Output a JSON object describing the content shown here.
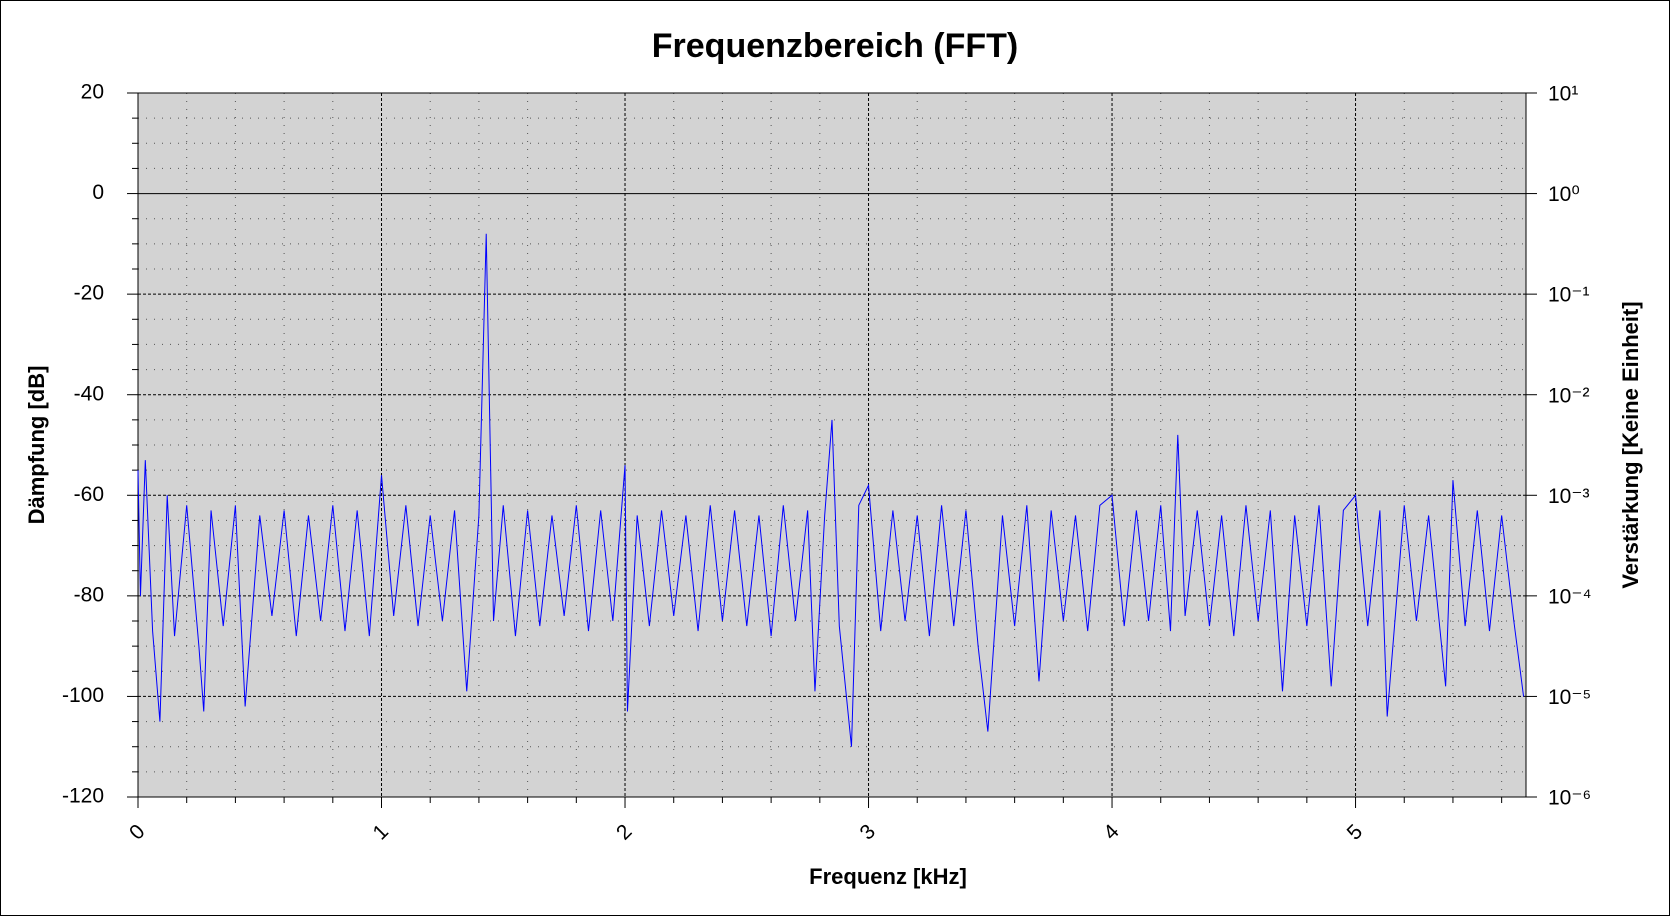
{
  "chart_data": {
    "type": "line",
    "title": "Frequenzbereich (FFT)",
    "x_label": "Frequenz [kHz]",
    "y_label": "Dämpfung [dB]",
    "y2_label": "Verstärkung [Keine Einheit]",
    "color": "#0000ff",
    "grid": true,
    "zero_line": true,
    "y2_log": true,
    "xlim": [
      0,
      5.7
    ],
    "ylim": [
      -120,
      20
    ],
    "y2lim": [
      1e-06,
      10
    ],
    "xticks": [
      0,
      1,
      2,
      3,
      4,
      5
    ],
    "yticks": [
      -120,
      -100,
      -80,
      -60,
      -40,
      -20,
      0,
      20
    ],
    "xminorticks": [
      0.2,
      0.4,
      0.6,
      0.8,
      1.2,
      1.4,
      1.6,
      1.8,
      2.2,
      2.4,
      2.6,
      2.8,
      3.2,
      3.4,
      3.6,
      3.8,
      4.2,
      4.4,
      4.6,
      4.8,
      5.2,
      5.4,
      5.6
    ],
    "yminorticks": [
      -115,
      -110,
      -105,
      -95,
      -90,
      -85,
      -75,
      -70,
      -65,
      -55,
      -50,
      -45,
      -35,
      -30,
      -25,
      -15,
      -10,
      -5,
      5,
      10,
      15
    ],
    "y2ticks": [
      {
        "value": 1e-06,
        "label": "10⁻⁶"
      },
      {
        "value": 1e-05,
        "label": "10⁻⁵"
      },
      {
        "value": 0.0001,
        "label": "10⁻⁴"
      },
      {
        "value": 0.001,
        "label": "10⁻³"
      },
      {
        "value": 0.01,
        "label": "10⁻²"
      },
      {
        "value": 0.1,
        "label": "10⁻¹"
      },
      {
        "value": 1,
        "label": "10⁰"
      },
      {
        "value": 10,
        "label": "10¹"
      }
    ],
    "x": [
      0,
      0.01,
      0.03,
      0.06,
      0.09,
      0.12,
      0.15,
      0.2,
      0.25,
      0.27,
      0.3,
      0.35,
      0.4,
      0.44,
      0.5,
      0.55,
      0.6,
      0.65,
      0.7,
      0.75,
      0.8,
      0.85,
      0.9,
      0.95,
      1.0,
      1.05,
      1.1,
      1.15,
      1.2,
      1.25,
      1.3,
      1.35,
      1.4,
      1.43,
      1.46,
      1.5,
      1.55,
      1.6,
      1.65,
      1.7,
      1.75,
      1.8,
      1.85,
      1.9,
      1.95,
      2.0,
      2.01,
      2.05,
      2.1,
      2.15,
      2.2,
      2.25,
      2.3,
      2.35,
      2.4,
      2.45,
      2.5,
      2.55,
      2.6,
      2.65,
      2.7,
      2.75,
      2.78,
      2.82,
      2.85,
      2.88,
      2.93,
      2.96,
      3.0,
      3.05,
      3.1,
      3.15,
      3.2,
      3.25,
      3.3,
      3.35,
      3.4,
      3.45,
      3.49,
      3.55,
      3.6,
      3.65,
      3.7,
      3.75,
      3.8,
      3.85,
      3.9,
      3.95,
      4.0,
      4.05,
      4.1,
      4.15,
      4.2,
      4.24,
      4.27,
      4.3,
      4.35,
      4.4,
      4.45,
      4.5,
      4.55,
      4.6,
      4.65,
      4.7,
      4.75,
      4.8,
      4.85,
      4.9,
      4.95,
      5.0,
      5.05,
      5.1,
      5.13,
      5.2,
      5.25,
      5.3,
      5.37,
      5.4,
      5.45,
      5.5,
      5.55,
      5.6,
      5.65,
      5.69
    ],
    "values": [
      -55,
      -80,
      -53,
      -87,
      -105,
      -60,
      -88,
      -62,
      -90,
      -103,
      -63,
      -86,
      -62,
      -102,
      -64,
      -84,
      -63,
      -88,
      -64,
      -85,
      -62,
      -87,
      -63,
      -88,
      -56,
      -84,
      -62,
      -86,
      -64,
      -85,
      -63,
      -99,
      -64,
      -8,
      -85,
      -62,
      -88,
      -63,
      -86,
      -64,
      -84,
      -62,
      -87,
      -63,
      -85,
      -54,
      -103,
      -64,
      -86,
      -63,
      -84,
      -64,
      -87,
      -62,
      -85,
      -63,
      -86,
      -64,
      -88,
      -62,
      -85,
      -63,
      -99,
      -64,
      -45,
      -86,
      -110,
      -62,
      -58,
      -87,
      -63,
      -85,
      -64,
      -88,
      -62,
      -86,
      -63,
      -90,
      -107,
      -64,
      -86,
      -62,
      -97,
      -63,
      -85,
      -64,
      -87,
      -62,
      -60,
      -86,
      -63,
      -85,
      -62,
      -87,
      -48,
      -84,
      -63,
      -86,
      -64,
      -88,
      -62,
      -85,
      -63,
      -99,
      -64,
      -86,
      -62,
      -98,
      -63,
      -60,
      -86,
      -63,
      -104,
      -62,
      -85,
      -64,
      -98,
      -57,
      -86,
      -63,
      -87,
      -64,
      -85,
      -100
    ]
  }
}
